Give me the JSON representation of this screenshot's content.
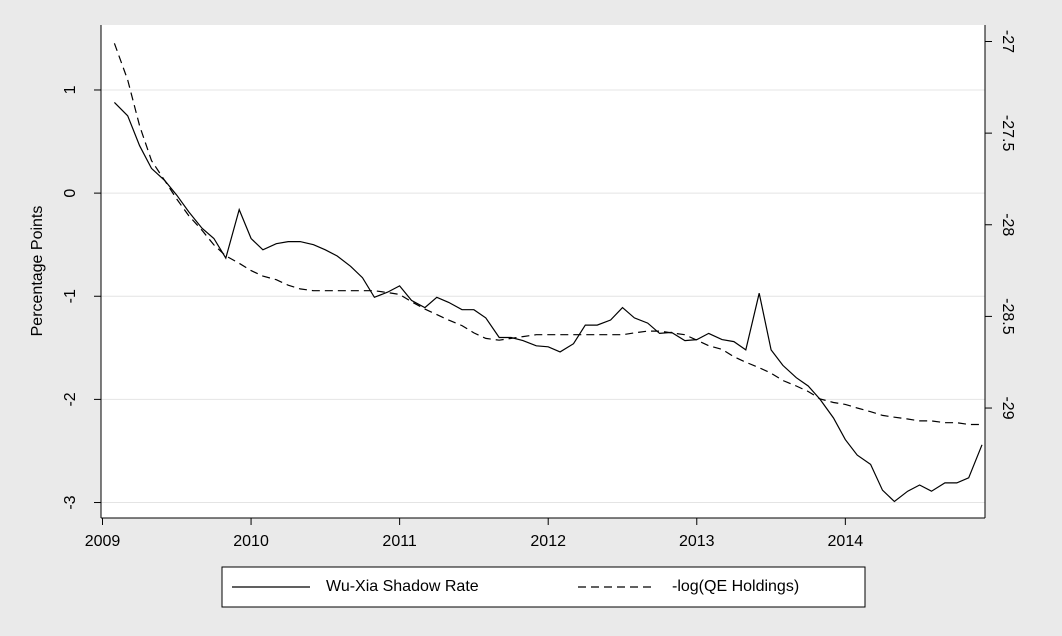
{
  "chart_data": {
    "type": "line",
    "y_label": "Percentage Points",
    "x": [
      2009.08,
      2009.17,
      2009.25,
      2009.33,
      2009.42,
      2009.5,
      2009.58,
      2009.67,
      2009.75,
      2009.83,
      2009.92,
      2010.0,
      2010.08,
      2010.17,
      2010.25,
      2010.33,
      2010.42,
      2010.5,
      2010.58,
      2010.67,
      2010.75,
      2010.83,
      2010.92,
      2011.0,
      2011.08,
      2011.17,
      2011.25,
      2011.33,
      2011.42,
      2011.5,
      2011.58,
      2011.67,
      2011.75,
      2011.83,
      2011.92,
      2012.0,
      2012.08,
      2012.17,
      2012.25,
      2012.33,
      2012.42,
      2012.5,
      2012.58,
      2012.67,
      2012.75,
      2012.83,
      2012.92,
      2013.0,
      2013.08,
      2013.17,
      2013.25,
      2013.33,
      2013.42,
      2013.5,
      2013.58,
      2013.67,
      2013.75,
      2013.83,
      2013.92,
      2014.0,
      2014.08,
      2014.17,
      2014.25,
      2014.33,
      2014.42,
      2014.5,
      2014.58,
      2014.67,
      2014.75,
      2014.83,
      2014.92
    ],
    "series": [
      {
        "name": "Wu-Xia Shadow Rate",
        "color": "#000000",
        "dash": false,
        "values": [
          0.88,
          0.75,
          0.46,
          0.24,
          0.12,
          -0.02,
          -0.18,
          -0.34,
          -0.44,
          -0.63,
          -0.16,
          -0.44,
          -0.55,
          -0.49,
          -0.47,
          -0.47,
          -0.5,
          -0.55,
          -0.61,
          -0.71,
          -0.82,
          -1.01,
          -0.96,
          -0.9,
          -1.04,
          -1.11,
          -1.01,
          -1.06,
          -1.13,
          -1.13,
          -1.21,
          -1.4,
          -1.4,
          -1.43,
          -1.48,
          -1.49,
          -1.54,
          -1.46,
          -1.28,
          -1.28,
          -1.23,
          -1.11,
          -1.21,
          -1.26,
          -1.36,
          -1.35,
          -1.43,
          -1.42,
          -1.36,
          -1.42,
          -1.44,
          -1.52,
          -0.97,
          -1.52,
          -1.67,
          -1.79,
          -1.87,
          -2.0,
          -2.18,
          -2.39,
          -2.54,
          -2.63,
          -2.88,
          -2.99,
          -2.89,
          -2.83,
          -2.89,
          -2.81,
          -2.81,
          -2.76,
          -2.44
        ]
      },
      {
        "name": "-log(QE Holdings)",
        "color": "#000000",
        "dash": true,
        "axis": "y2",
        "values": [
          -27.01,
          -27.21,
          -27.46,
          -27.65,
          -27.76,
          -27.86,
          -27.95,
          -28.03,
          -28.11,
          -28.17,
          -28.21,
          -28.25,
          -28.28,
          -28.3,
          -28.33,
          -28.35,
          -28.36,
          -28.36,
          -28.36,
          -28.36,
          -28.36,
          -28.36,
          -28.37,
          -28.38,
          -28.42,
          -28.46,
          -28.49,
          -28.52,
          -28.55,
          -28.59,
          -28.62,
          -28.63,
          -28.62,
          -28.61,
          -28.6,
          -28.6,
          -28.6,
          -28.6,
          -28.6,
          -28.6,
          -28.6,
          -28.6,
          -28.59,
          -28.58,
          -28.58,
          -28.59,
          -28.6,
          -28.63,
          -28.66,
          -28.68,
          -28.72,
          -28.75,
          -28.78,
          -28.81,
          -28.85,
          -28.88,
          -28.91,
          -28.95,
          -28.97,
          -28.98,
          -29.0,
          -29.02,
          -29.04,
          -29.05,
          -29.06,
          -29.07,
          -29.07,
          -29.08,
          -29.08,
          -29.09,
          -29.09
        ]
      }
    ],
    "xlim": [
      2008.99,
      2014.94
    ],
    "xticks": [
      2009,
      2010,
      2011,
      2012,
      2013,
      2014
    ],
    "ylim": [
      -3.15,
      1.63
    ],
    "yticks": [
      -3,
      -2,
      -1,
      0,
      1
    ],
    "y2lim": [
      -29.6,
      -26.91
    ],
    "y2ticks": [
      -29,
      -28.5,
      -28,
      -27.5,
      -27
    ],
    "grid": true,
    "legend": "bottom"
  }
}
